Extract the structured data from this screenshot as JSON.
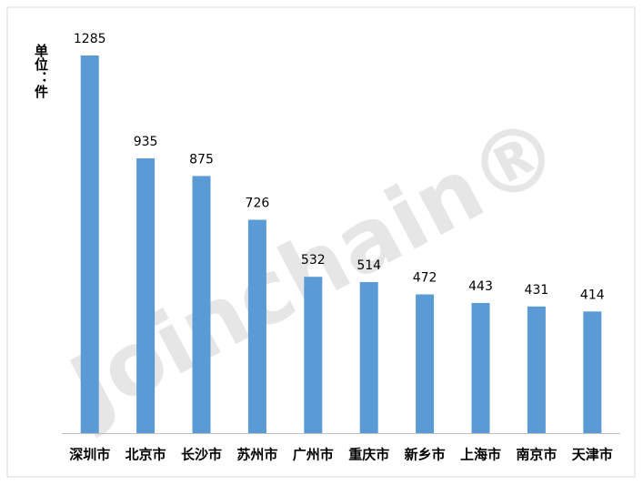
{
  "chart_data": {
    "type": "bar",
    "y_label": "单位：件",
    "watermark": "Joinchain®",
    "categories": [
      "深圳市",
      "北京市",
      "长沙市",
      "苏州市",
      "广州市",
      "重庆市",
      "新乡市",
      "上海市",
      "南京市",
      "天津市"
    ],
    "values": [
      1285,
      935,
      875,
      726,
      532,
      514,
      472,
      443,
      431,
      414
    ],
    "color": "#5b9bd5"
  }
}
